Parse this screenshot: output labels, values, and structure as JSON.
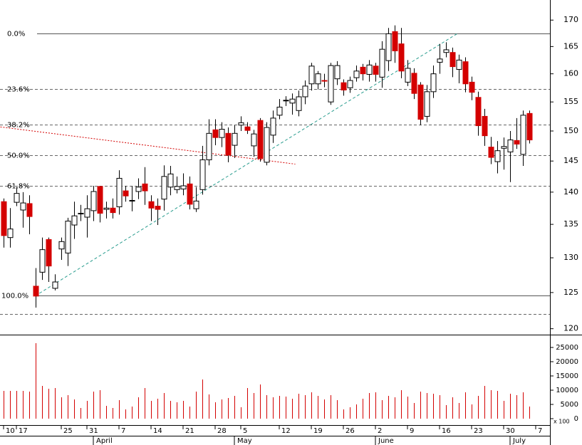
{
  "chart_data": {
    "type": "candlestick",
    "yscale": "log",
    "up_color": "#ffffff",
    "down_color": "#d40000",
    "edge_color": "#000000",
    "ylim": [
      119.2,
      173.9
    ],
    "yticks": [
      120,
      125,
      130,
      135,
      140,
      145,
      150,
      155,
      160,
      165,
      170
    ],
    "categories": [
      "10",
      null,
      "17",
      null,
      null,
      null,
      null,
      null,
      null,
      "25",
      null,
      null,
      null,
      "31",
      null,
      null,
      null,
      null,
      "7",
      null,
      null,
      null,
      null,
      "14",
      null,
      null,
      null,
      null,
      "21",
      null,
      null,
      null,
      null,
      "28",
      null,
      null,
      null,
      "5",
      null,
      null,
      null,
      null,
      null,
      "12",
      null,
      null,
      null,
      null,
      "19",
      null,
      null,
      null,
      null,
      "26",
      null,
      null,
      null,
      null,
      "2",
      null,
      null,
      null,
      null,
      "9",
      null,
      null,
      null,
      null,
      "16",
      null,
      null,
      null,
      null,
      "23",
      null,
      null,
      null,
      null,
      "30",
      null,
      null,
      null,
      null,
      "7"
    ],
    "months": [
      null,
      null,
      null,
      null,
      null,
      null,
      null,
      null,
      null,
      null,
      null,
      null,
      null,
      null,
      "April",
      null,
      null,
      null,
      null,
      null,
      null,
      null,
      null,
      null,
      null,
      null,
      null,
      null,
      null,
      null,
      null,
      null,
      null,
      null,
      null,
      null,
      "May",
      null,
      null,
      null,
      null,
      null,
      null,
      null,
      null,
      null,
      null,
      null,
      null,
      null,
      null,
      null,
      null,
      null,
      null,
      null,
      null,
      null,
      "June",
      null,
      null,
      null,
      null,
      null,
      null,
      null,
      null,
      null,
      null,
      null,
      null,
      null,
      null,
      null,
      null,
      null,
      null,
      null,
      null,
      "July",
      null,
      null,
      null,
      null
    ],
    "open": [
      138.5,
      133.0,
      138.4,
      137.2,
      138.2,
      125.9,
      127.9,
      132.7,
      125.6,
      131.3,
      130.7,
      134.9,
      136.6,
      136.1,
      137.1,
      140.9,
      137.3,
      137.5,
      137.7,
      140.2,
      138.6,
      140.1,
      141.3,
      138.5,
      137.8,
      138.9,
      140.8,
      140.4,
      140.5,
      141.3,
      137.4,
      140.4,
      145.2,
      150.2,
      148.9,
      149.6,
      147.6,
      151.0,
      150.7,
      147.5,
      151.8,
      144.8,
      149.3,
      152.7,
      155.2,
      154.8,
      153.5,
      155.9,
      158.2,
      158.2,
      158.8,
      155.0,
      159.1,
      158.4,
      157.5,
      159.3,
      161.2,
      159.9,
      161.4,
      159.4,
      162.4,
      167.8,
      165.5,
      158.5,
      160.1,
      158.0,
      152.5,
      156.8,
      162.1,
      163.9,
      163.9,
      160.8,
      162.2,
      158.5,
      155.8,
      152.5,
      147.3,
      144.9,
      147.1,
      146.5,
      148.4,
      146.1,
      153.0,
      null
    ],
    "high": [
      139,
      137.5,
      140.8,
      140,
      139.5,
      128.5,
      133,
      133,
      127.6,
      133,
      136,
      138.5,
      138,
      139.5,
      141,
      141,
      138.5,
      139,
      143.5,
      141,
      141,
      142.2,
      144,
      139.5,
      139,
      144.3,
      144.2,
      142.5,
      143,
      142.5,
      140.8,
      147.5,
      152,
      152,
      151.5,
      150.6,
      151,
      152.5,
      151.5,
      150.2,
      152.2,
      151.5,
      153.5,
      155.5,
      156,
      156.5,
      157,
      158.8,
      162,
      160.5,
      160,
      162,
      162.3,
      159,
      159.5,
      161.5,
      161.8,
      162.5,
      162,
      166,
      168.5,
      169,
      168.5,
      162.5,
      161,
      158.5,
      158,
      161.5,
      165.5,
      165.8,
      164.8,
      163.5,
      163,
      159.5,
      156.8,
      153.8,
      149,
      148.3,
      148.9,
      150,
      152.2,
      153.5,
      153.5,
      null
    ],
    "low": [
      131.5,
      131.5,
      137.8,
      134.5,
      133.5,
      122.9,
      126.8,
      126.5,
      125.3,
      129.7,
      128.8,
      132.8,
      135.5,
      133,
      135.5,
      135.3,
      135.9,
      135.9,
      136.5,
      138.5,
      137,
      138.9,
      138,
      135.5,
      134.9,
      137.1,
      139.5,
      139.8,
      139.5,
      137.3,
      136.9,
      139.6,
      144.3,
      147.6,
      147.3,
      144.8,
      145.5,
      150,
      149.5,
      145.7,
      144.9,
      144.3,
      148,
      152,
      154.3,
      152.8,
      152.5,
      154.6,
      157,
      157.2,
      157.6,
      154.5,
      158,
      156.1,
      156.6,
      158.6,
      158.8,
      158.6,
      158.6,
      157.5,
      160.5,
      162,
      159.2,
      157.8,
      155.5,
      151,
      151.5,
      155.7,
      160,
      163,
      159.4,
      158.3,
      156.7,
      155.3,
      149.2,
      147.5,
      144.5,
      143,
      143.6,
      141.6,
      147,
      144.2,
      147.9,
      null
    ],
    "close": [
      133.3,
      134.3,
      139.8,
      138.3,
      136.2,
      124.5,
      131.2,
      128.8,
      126.5,
      132.4,
      135.5,
      136.3,
      136.7,
      137.4,
      140.1,
      136.7,
      137.5,
      136.8,
      142.2,
      139.4,
      138.7,
      140.8,
      140.2,
      137.5,
      137.3,
      142.5,
      142.9,
      140.9,
      141.0,
      138.1,
      138.6,
      145.2,
      149.6,
      148.9,
      150.3,
      146.0,
      149.6,
      151.4,
      150.1,
      149.5,
      145.4,
      150.6,
      152.2,
      154.1,
      155.3,
      155.5,
      155.9,
      157.8,
      161.4,
      160.0,
      158.7,
      161.5,
      161.5,
      157.1,
      158.8,
      160.5,
      160.0,
      161.6,
      159.9,
      164.5,
      167.4,
      164.2,
      160.5,
      161.0,
      156.5,
      152.0,
      156.8,
      160.0,
      162.7,
      164.4,
      161.3,
      162.5,
      158.2,
      156.7,
      150.9,
      149.2,
      145.6,
      146.7,
      147.4,
      148.5,
      147.8,
      152.7,
      148.5,
      null
    ],
    "levels": [
      {
        "value": 167.4,
        "label": "0.0%",
        "style": "solid"
      },
      {
        "value": 157.3,
        "label": "23.6%",
        "style": "dashed"
      },
      {
        "value": 151.05,
        "label": "38.2%",
        "style": "dashed"
      },
      {
        "value": 146.0,
        "label": "50.0%",
        "style": "dashed"
      },
      {
        "value": 140.95,
        "label": "61.8%",
        "style": "dashed"
      },
      {
        "value": 124.6,
        "label": "100.0%",
        "style": "solid"
      }
    ],
    "extra_levels": [
      122.0
    ],
    "trendlines": [
      {
        "color": "#2a9d8f",
        "style": "dashed",
        "x": [
          5.6,
          71
        ],
        "y": [
          124.9,
          167.6
        ]
      },
      {
        "color": "#d40000",
        "style": "dotted",
        "x": [
          -0.5,
          45.5
        ],
        "y": [
          150.7,
          144.5
        ]
      }
    ],
    "volume": {
      "color": "#d40000",
      "unit": "x 100",
      "ylim": [
        0,
        29500
      ],
      "yticks": [
        0,
        5000,
        10000,
        15000,
        20000,
        25000
      ],
      "values": [
        9750,
        9750,
        9750,
        9750,
        9500,
        26500,
        11500,
        10500,
        10750,
        7500,
        8250,
        6750,
        3750,
        6250,
        9500,
        10000,
        4500,
        3750,
        6500,
        3250,
        4250,
        7500,
        10750,
        6250,
        7000,
        9000,
        6250,
        5750,
        6250,
        4250,
        9500,
        13750,
        8500,
        5750,
        6750,
        7250,
        8000,
        4000,
        10750,
        9000,
        12000,
        8250,
        7500,
        8000,
        7750,
        7000,
        8750,
        8250,
        9250,
        8000,
        6750,
        8250,
        6500,
        3250,
        4000,
        5000,
        7000,
        9000,
        9250,
        6500,
        8000,
        7500,
        10000,
        7750,
        5500,
        9500,
        9000,
        8750,
        8250,
        4750,
        7500,
        5500,
        9250,
        5000,
        8000,
        11500,
        10000,
        9750,
        6250,
        8750,
        8250,
        9250,
        4250,
        null
      ]
    }
  }
}
